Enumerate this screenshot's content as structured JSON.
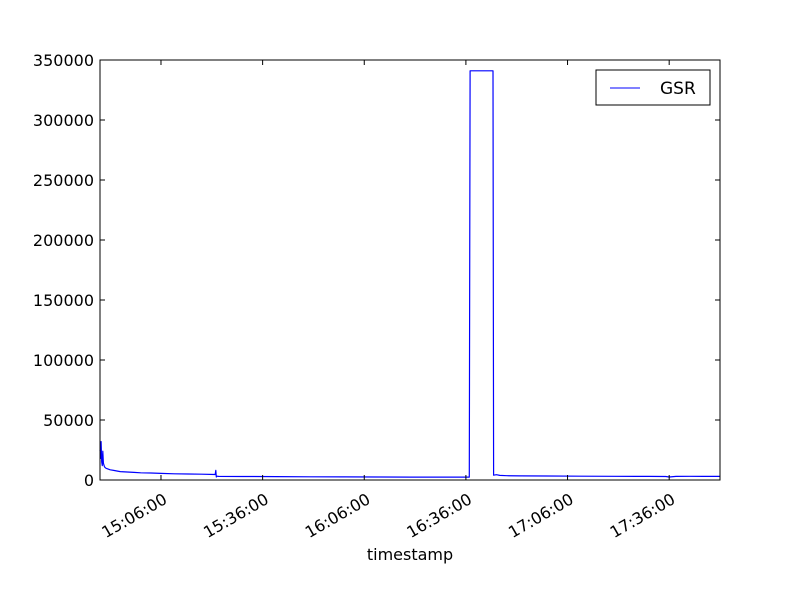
{
  "chart_data": {
    "type": "line",
    "title": "",
    "xlabel": "timestamp",
    "ylabel": "",
    "x_unit": "time of day (HH:MM:SS)",
    "xlim": [
      "14:48:00",
      "17:51:00"
    ],
    "ylim": [
      0,
      350000
    ],
    "y_ticks": [
      0,
      50000,
      100000,
      150000,
      200000,
      250000,
      300000,
      350000
    ],
    "x_ticks": [
      "15:06:00",
      "15:36:00",
      "16:06:00",
      "16:36:00",
      "17:06:00",
      "17:36:00"
    ],
    "grid": false,
    "legend": {
      "position": "top-right",
      "entries": [
        "GSR"
      ]
    },
    "series": [
      {
        "name": "GSR",
        "color": "#0000ff",
        "x": [
          "14:48:00",
          "14:48:10",
          "14:48:20",
          "14:48:30",
          "14:48:40",
          "14:48:50",
          "14:49:00",
          "14:49:20",
          "14:49:40",
          "14:50:00",
          "14:50:30",
          "14:51:00",
          "14:52:00",
          "14:53:00",
          "14:54:00",
          "14:56:00",
          "14:58:00",
          "15:00:00",
          "15:03:00",
          "15:06:00",
          "15:10:00",
          "15:14:00",
          "15:18:00",
          "15:22:00",
          "15:22:10",
          "15:22:20",
          "15:22:30",
          "15:23:00",
          "15:30:00",
          "15:40:00",
          "15:50:00",
          "16:00:00",
          "16:10:00",
          "16:20:00",
          "16:30:00",
          "16:34:00",
          "16:37:00",
          "16:37:15",
          "16:44:00",
          "16:44:10",
          "16:45:00",
          "16:46:00",
          "16:48:00",
          "16:52:00",
          "17:00:00",
          "17:10:00",
          "17:20:00",
          "17:30:00",
          "17:35:00",
          "17:36:00",
          "17:38:00",
          "17:42:00",
          "17:46:00",
          "17:51:00"
        ],
        "y": [
          25000,
          18000,
          32000,
          15000,
          12000,
          24000,
          14000,
          11000,
          10000,
          9500,
          9000,
          8500,
          8000,
          7500,
          7000,
          6700,
          6300,
          6000,
          5800,
          5500,
          5200,
          5000,
          4800,
          4600,
          8000,
          2500,
          3200,
          3000,
          2900,
          2800,
          2700,
          2600,
          2500,
          2400,
          2400,
          2400,
          2400,
          341000,
          341000,
          4000,
          4400,
          3800,
          3600,
          3400,
          3300,
          3200,
          3100,
          3000,
          2900,
          2500,
          3000,
          3100,
          3000,
          3000
        ]
      }
    ]
  }
}
